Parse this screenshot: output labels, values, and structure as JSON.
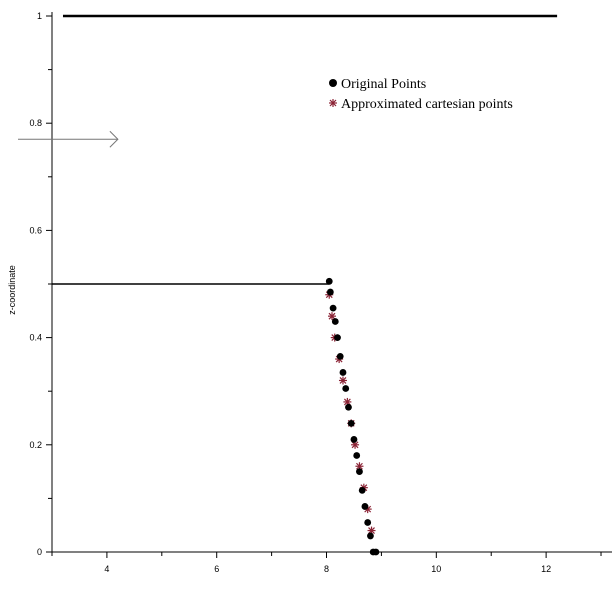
{
  "chart_data": {
    "type": "scatter",
    "title": "",
    "xlabel": "",
    "ylabel": "z-coordinate",
    "xlim": [
      3.0,
      13.2
    ],
    "ylim": [
      0,
      1.0
    ],
    "x_ticks": [
      4,
      6,
      8,
      10,
      12
    ],
    "y_ticks": [
      0,
      0.2,
      0.4,
      0.6,
      0.8,
      1
    ],
    "grid": false,
    "legend": {
      "position": "top-right",
      "entries": [
        "Original Points",
        "Approximated cartesian points"
      ]
    },
    "colors": {
      "original": "#000000",
      "approximated": "#8b2335",
      "lines": "#000000",
      "arrow": "#777777"
    },
    "lines": [
      {
        "name": "top-line",
        "x": [
          3.2,
          12.2
        ],
        "y": [
          1.0,
          1.0
        ]
      },
      {
        "name": "mid-line",
        "x": [
          3.0,
          8.05
        ],
        "y": [
          0.5,
          0.5
        ]
      }
    ],
    "arrow": {
      "x": [
        3.0,
        4.2
      ],
      "y": [
        0.77,
        0.77
      ]
    },
    "series": [
      {
        "name": "Original Points",
        "marker": "circle",
        "x": [
          8.05,
          8.07,
          8.12,
          8.16,
          8.2,
          8.25,
          8.3,
          8.35,
          8.4,
          8.45,
          8.5,
          8.55,
          8.6,
          8.65,
          8.7,
          8.75,
          8.8,
          8.85,
          8.9
        ],
        "y": [
          0.505,
          0.485,
          0.455,
          0.43,
          0.4,
          0.365,
          0.335,
          0.305,
          0.27,
          0.24,
          0.21,
          0.18,
          0.15,
          0.115,
          0.085,
          0.055,
          0.03,
          0.0,
          0.0
        ]
      },
      {
        "name": "Approximated cartesian points",
        "marker": "asterisk",
        "x": [
          8.05,
          8.1,
          8.15,
          8.23,
          8.3,
          8.38,
          8.45,
          8.52,
          8.6,
          8.68,
          8.75,
          8.82
        ],
        "y": [
          0.48,
          0.44,
          0.4,
          0.36,
          0.32,
          0.28,
          0.24,
          0.2,
          0.16,
          0.12,
          0.08,
          0.04
        ]
      }
    ]
  }
}
